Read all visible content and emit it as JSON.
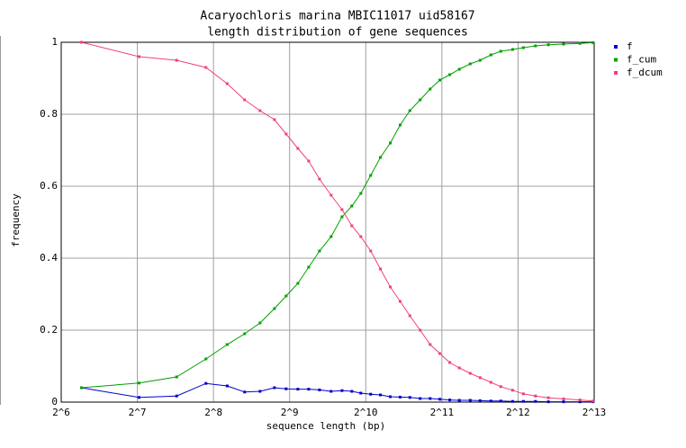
{
  "chart_data": {
    "type": "line",
    "title": "Acaryochloris marina MBIC11017 uid58167",
    "subtitle": "length distribution of gene sequences",
    "x_label": "sequence length (bp)",
    "y_label": "frequency",
    "log_scale_x": 2,
    "grid": true,
    "legend_position": "right",
    "xlim": [
      64,
      8192
    ],
    "ylim": [
      0,
      1
    ],
    "xticks": [
      {
        "value": 64,
        "label": "2^6"
      },
      {
        "value": 128,
        "label": "2^7"
      },
      {
        "value": 256,
        "label": "2^8"
      },
      {
        "value": 512,
        "label": "2^9"
      },
      {
        "value": 1024,
        "label": "2^10"
      },
      {
        "value": 2048,
        "label": "2^11"
      },
      {
        "value": 4096,
        "label": "2^12"
      },
      {
        "value": 8192,
        "label": "2^13"
      }
    ],
    "yticks": [
      0,
      0.2,
      0.4,
      0.6,
      0.8,
      1
    ],
    "x": [
      77,
      130,
      183,
      239,
      290,
      340,
      391,
      446,
      496,
      552,
      609,
      672,
      747,
      825,
      902,
      979,
      1071,
      1170,
      1280,
      1400,
      1530,
      1680,
      1840,
      2010,
      2200,
      2400,
      2650,
      2900,
      3200,
      3500,
      3900,
      4300,
      4800,
      5400,
      6200,
      7200,
      8100
    ],
    "series": [
      {
        "name": "f",
        "color": "#0000cc",
        "values": [
          0.04,
          0.013,
          0.017,
          0.052,
          0.045,
          0.028,
          0.03,
          0.04,
          0.037,
          0.036,
          0.036,
          0.034,
          0.03,
          0.032,
          0.03,
          0.025,
          0.022,
          0.02,
          0.015,
          0.014,
          0.013,
          0.01,
          0.01,
          0.008,
          0.006,
          0.005,
          0.005,
          0.004,
          0.003,
          0.003,
          0.002,
          0.002,
          0.002,
          0.001,
          0.001,
          0.001,
          0.001
        ]
      },
      {
        "name": "f_cum",
        "color": "#00a000",
        "values": [
          0.04,
          0.053,
          0.07,
          0.12,
          0.16,
          0.19,
          0.22,
          0.26,
          0.295,
          0.33,
          0.375,
          0.42,
          0.46,
          0.515,
          0.545,
          0.58,
          0.63,
          0.68,
          0.72,
          0.77,
          0.81,
          0.84,
          0.87,
          0.895,
          0.91,
          0.925,
          0.94,
          0.95,
          0.965,
          0.975,
          0.98,
          0.985,
          0.99,
          0.993,
          0.995,
          0.997,
          0.999
        ]
      },
      {
        "name": "f_dcum",
        "color": "#f0407a",
        "values": [
          1.0,
          0.96,
          0.95,
          0.93,
          0.885,
          0.84,
          0.81,
          0.785,
          0.745,
          0.705,
          0.67,
          0.62,
          0.575,
          0.535,
          0.49,
          0.46,
          0.42,
          0.37,
          0.32,
          0.28,
          0.24,
          0.2,
          0.16,
          0.135,
          0.11,
          0.095,
          0.08,
          0.068,
          0.055,
          0.043,
          0.033,
          0.023,
          0.017,
          0.012,
          0.009,
          0.006,
          0.003
        ]
      }
    ]
  }
}
